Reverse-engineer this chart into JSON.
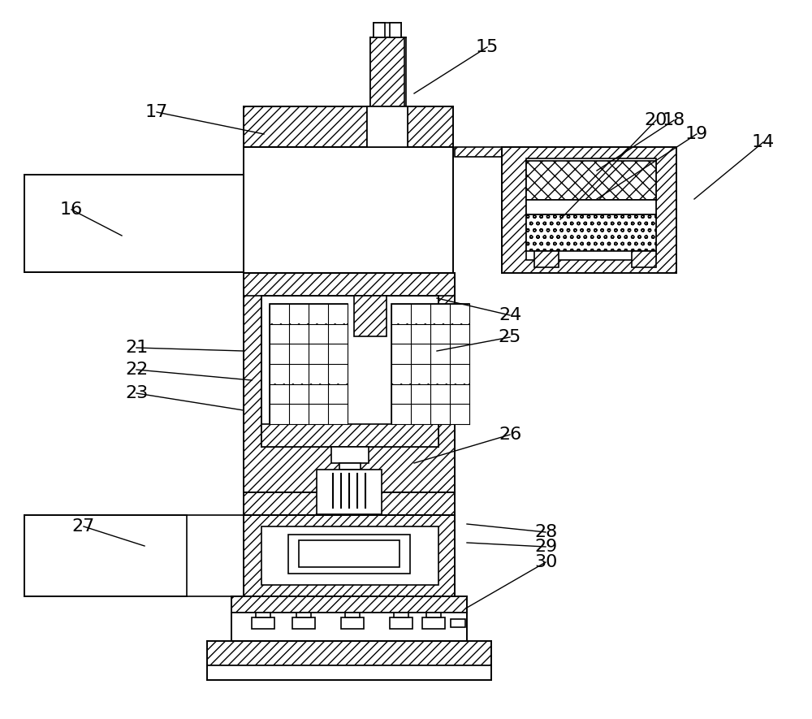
{
  "bg_color": "#ffffff",
  "line_color": "#000000",
  "labels_data": [
    [
      "15",
      600,
      58,
      510,
      115
    ],
    [
      "17",
      193,
      138,
      325,
      165
    ],
    [
      "16",
      88,
      258,
      150,
      290
    ],
    [
      "14",
      940,
      175,
      855,
      245
    ],
    [
      "18",
      830,
      148,
      735,
      210
    ],
    [
      "19",
      858,
      165,
      735,
      245
    ],
    [
      "20",
      808,
      148,
      690,
      270
    ],
    [
      "21",
      168,
      428,
      300,
      432
    ],
    [
      "22",
      168,
      455,
      310,
      468
    ],
    [
      "23",
      168,
      484,
      300,
      505
    ],
    [
      "24",
      628,
      388,
      538,
      367
    ],
    [
      "25",
      628,
      415,
      538,
      432
    ],
    [
      "26",
      628,
      535,
      510,
      570
    ],
    [
      "27",
      103,
      648,
      178,
      672
    ],
    [
      "28",
      672,
      655,
      575,
      645
    ],
    [
      "29",
      672,
      673,
      575,
      668
    ],
    [
      "30",
      672,
      692,
      575,
      748
    ]
  ]
}
